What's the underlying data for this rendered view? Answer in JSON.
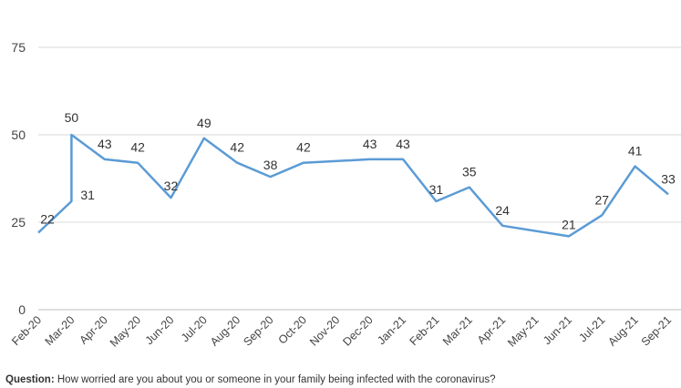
{
  "chart_data": {
    "type": "line",
    "title": "",
    "xlabel": "",
    "ylabel": "",
    "ylim": [
      0,
      75
    ],
    "yticks": [
      0,
      25,
      50,
      75
    ],
    "grid": true,
    "line_color": "#5b9bd5",
    "categories": [
      "Feb-20",
      "Mar-20",
      "Apr-20",
      "May-20",
      "Jun-20",
      "Jul-20",
      "Aug-20",
      "Sep-20",
      "Oct-20",
      "Nov-20",
      "Dec-20",
      "Jan-21",
      "Feb-21",
      "Mar-21",
      "Apr-21",
      "May-21",
      "Jun-21",
      "Jul-21",
      "Aug-21",
      "Sep-21"
    ],
    "points": [
      {
        "x": "Feb-20",
        "y": 22,
        "label": "22"
      },
      {
        "x": "Mar-20",
        "y": 31,
        "label": "31"
      },
      {
        "x": "Mar-20",
        "y": 50,
        "label": "50"
      },
      {
        "x": "Apr-20",
        "y": 43,
        "label": "43"
      },
      {
        "x": "May-20",
        "y": 42,
        "label": "42"
      },
      {
        "x": "Jun-20",
        "y": 32,
        "label": "32"
      },
      {
        "x": "Jul-20",
        "y": 49,
        "label": "49"
      },
      {
        "x": "Aug-20",
        "y": 42,
        "label": "42"
      },
      {
        "x": "Sep-20",
        "y": 38,
        "label": "38"
      },
      {
        "x": "Oct-20",
        "y": 42,
        "label": "42"
      },
      {
        "x": "Dec-20",
        "y": 43,
        "label": "43"
      },
      {
        "x": "Jan-21",
        "y": 43,
        "label": "43"
      },
      {
        "x": "Feb-21",
        "y": 31,
        "label": "31"
      },
      {
        "x": "Mar-21",
        "y": 35,
        "label": "35"
      },
      {
        "x": "Apr-21",
        "y": 24,
        "label": "24"
      },
      {
        "x": "Jun-21",
        "y": 21,
        "label": "21"
      },
      {
        "x": "Jul-21",
        "y": 27,
        "label": "27"
      },
      {
        "x": "Aug-21",
        "y": 41,
        "label": "41"
      },
      {
        "x": "Sep-21",
        "y": 33,
        "label": "33"
      }
    ]
  },
  "footnote": {
    "prefix": "Question:",
    "text": " How worried are you about you or someone in your family being infected with the coronavirus?"
  }
}
